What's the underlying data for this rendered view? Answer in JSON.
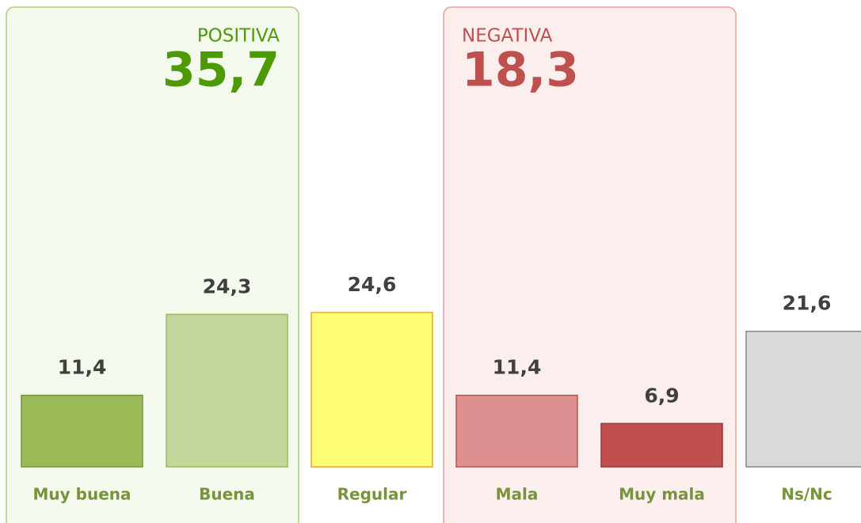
{
  "chart_data": {
    "type": "bar",
    "categories": [
      "Muy buena",
      "Buena",
      "Regular",
      "Mala",
      "Muy mala",
      "Ns/Nc"
    ],
    "values": [
      11.4,
      24.3,
      24.6,
      11.4,
      6.9,
      21.6
    ],
    "value_labels": [
      "11,4",
      "24,3",
      "24,6",
      "11,4",
      "6,9",
      "21,6"
    ],
    "colors": [
      "#9bbb59",
      "#c3d69b",
      "#ffff75",
      "#dd9090",
      "#c0504d",
      "#d9d9d9"
    ],
    "edge_colors": [
      "#77933c",
      "#9bbb59",
      "#f0a030",
      "#c0504d",
      "#953735",
      "#888888"
    ],
    "category_color": "#77933c",
    "value_label_color": "#404040",
    "ylim": [
      0,
      70
    ],
    "groups": [
      {
        "label": "POSITIVA",
        "value": 35.7,
        "value_label": "35,7",
        "color": "#4e9a06",
        "fill": "#f3f9ec",
        "edge": "#a9cf7e"
      },
      {
        "label": "NEGATIVA",
        "value": 18.3,
        "value_label": "18,3",
        "color": "#c0504d",
        "fill": "#fdeeee",
        "edge": "#e8a0a0"
      }
    ]
  }
}
